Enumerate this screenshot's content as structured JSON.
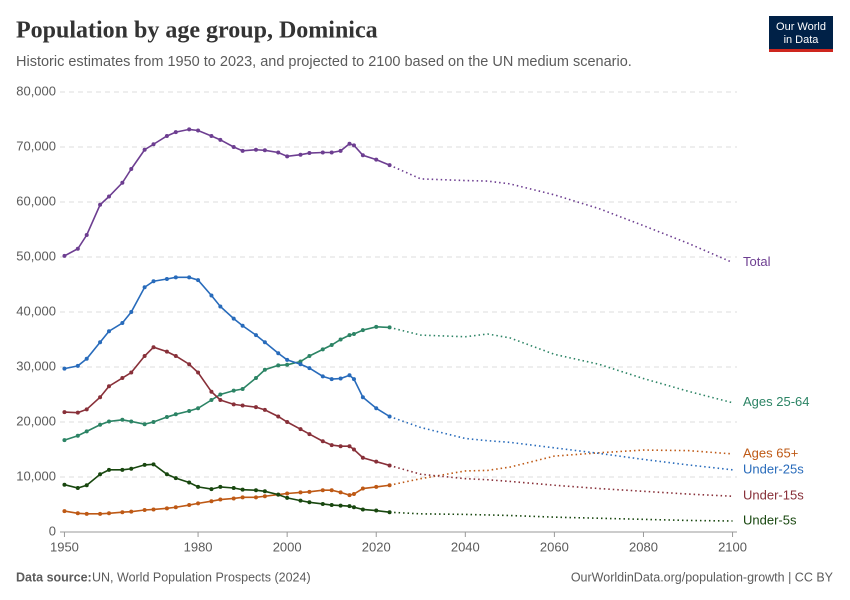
{
  "chart_data": {
    "type": "line",
    "title": "Population by age group, Dominica",
    "subtitle": "Historic estimates from 1950 to 2023, and projected to 2100 based on the UN medium scenario.",
    "logo": [
      "Our World",
      "in Data"
    ],
    "source_label": "Data source:",
    "source": "UN, World Population Prospects (2024)",
    "footer_right": "OurWorldinData.org/population-growth | CC BY",
    "projected_from": 2023,
    "grid": true,
    "xlim": [
      1949,
      2101
    ],
    "xticks": [
      1950,
      1980,
      2000,
      2020,
      2040,
      2060,
      2080,
      2100
    ],
    "ylim": [
      0,
      80000
    ],
    "yticks": [
      0,
      {
        "value": 10000,
        "label": "10,000"
      },
      {
        "value": 20000,
        "label": "20,000"
      },
      {
        "value": 30000,
        "label": "30,000"
      },
      {
        "value": 40000,
        "label": "40,000"
      },
      {
        "value": 50000,
        "label": "50,000"
      },
      {
        "value": 60000,
        "label": "60,000"
      },
      {
        "value": 70000,
        "label": "70,000"
      },
      {
        "value": 80000,
        "label": "80,000"
      }
    ],
    "x": [
      1950,
      1953,
      1955,
      1958,
      1960,
      1963,
      1965,
      1968,
      1970,
      1973,
      1975,
      1978,
      1980,
      1983,
      1985,
      1988,
      1990,
      1993,
      1995,
      1998,
      2000,
      2003,
      2005,
      2008,
      2010,
      2012,
      2014,
      2015,
      2017,
      2020,
      2023,
      2030,
      2040,
      2045,
      2050,
      2060,
      2070,
      2080,
      2090,
      2100
    ],
    "series": [
      {
        "name": "Total",
        "color": "#6d3e91",
        "values": [
          50200,
          51500,
          54000,
          59500,
          61000,
          63500,
          66000,
          69500,
          70500,
          72000,
          72700,
          73200,
          73000,
          72000,
          71300,
          70000,
          69300,
          69500,
          69400,
          69000,
          68300,
          68600,
          68900,
          69000,
          69000,
          69300,
          70600,
          70300,
          68500,
          67700,
          66700,
          64200,
          63900,
          63800,
          63300,
          61300,
          58800,
          55700,
          52500,
          49000
        ]
      },
      {
        "name": "Ages 25-64",
        "color": "#2c8465",
        "values": [
          16700,
          17500,
          18300,
          19500,
          20100,
          20400,
          20100,
          19600,
          20000,
          20900,
          21400,
          22000,
          22500,
          24000,
          25000,
          25700,
          26000,
          28000,
          29500,
          30300,
          30400,
          31000,
          32000,
          33200,
          34000,
          35000,
          35800,
          36000,
          36700,
          37300,
          37200,
          35800,
          35500,
          36000,
          35300,
          32300,
          30500,
          27900,
          25600,
          23500
        ]
      },
      {
        "name": "Ages 65+",
        "color": "#be5915",
        "values": [
          3800,
          3400,
          3300,
          3300,
          3400,
          3600,
          3700,
          4000,
          4100,
          4300,
          4500,
          4900,
          5200,
          5600,
          5900,
          6100,
          6300,
          6300,
          6500,
          6800,
          7000,
          7200,
          7300,
          7600,
          7600,
          7200,
          6700,
          6900,
          7900,
          8200,
          8500,
          9700,
          11100,
          11200,
          11800,
          13800,
          14400,
          14900,
          14800,
          14200
        ]
      },
      {
        "name": "Under-25s",
        "color": "#286bbb",
        "values": [
          29700,
          30200,
          31500,
          34500,
          36500,
          38000,
          40000,
          44500,
          45600,
          46000,
          46300,
          46300,
          45800,
          43000,
          41000,
          38800,
          37500,
          35800,
          34500,
          32500,
          31300,
          30500,
          29800,
          28300,
          27800,
          27900,
          28500,
          27800,
          24500,
          22500,
          21000,
          19000,
          17000,
          16600,
          16300,
          15300,
          14300,
          13200,
          12200,
          11300
        ]
      },
      {
        "name": "Under-15s",
        "color": "#883039",
        "values": [
          21800,
          21700,
          22300,
          24500,
          26500,
          28000,
          29000,
          32000,
          33600,
          32800,
          32000,
          30500,
          29000,
          25500,
          24000,
          23200,
          23000,
          22700,
          22200,
          21000,
          20000,
          18700,
          17800,
          16500,
          15800,
          15600,
          15600,
          15000,
          13500,
          12800,
          12100,
          10500,
          9700,
          9500,
          9200,
          8500,
          7900,
          7400,
          6900,
          6500
        ]
      },
      {
        "name": "Under-5s",
        "color": "#18470f",
        "values": [
          8600,
          8000,
          8500,
          10500,
          11300,
          11300,
          11500,
          12200,
          12300,
          10500,
          9800,
          9000,
          8200,
          7800,
          8200,
          8000,
          7700,
          7600,
          7400,
          6800,
          6200,
          5700,
          5400,
          5100,
          4900,
          4800,
          4700,
          4500,
          4100,
          3900,
          3600,
          3300,
          3200,
          3100,
          3000,
          2700,
          2500,
          2300,
          2100,
          2000
        ]
      }
    ]
  }
}
